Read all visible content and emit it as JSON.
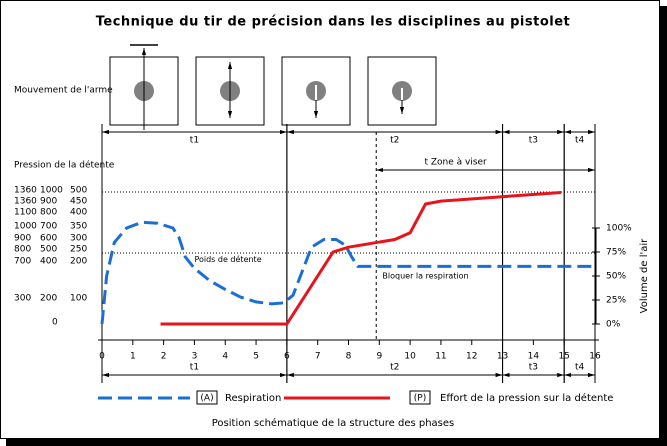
{
  "chart_data": {
    "type": "line",
    "title": "Technique du tir de précision dans les disciplines au pistolet",
    "weapon_label": "Mouvement de l'arme",
    "pressure_label": "Pression de la détente",
    "pressure_table": [
      [
        "1360",
        "1000",
        "500"
      ],
      [
        "1360",
        "900",
        "450"
      ],
      [
        "1100",
        "800",
        "400"
      ],
      [
        "1000",
        "700",
        "350"
      ],
      [
        "900",
        "600",
        "300"
      ],
      [
        "800",
        "500",
        "250"
      ],
      [
        "700",
        "400",
        "200"
      ],
      [
        "300",
        "200",
        "100"
      ],
      [
        "0"
      ]
    ],
    "x_label": "Position schématique de la structure des phases",
    "y2_label": "Volume de l'air",
    "xlim": [
      0,
      16
    ],
    "xticks": [
      0,
      1,
      2,
      3,
      4,
      5,
      6,
      7,
      8,
      9,
      10,
      11,
      12,
      13,
      14,
      15,
      16
    ],
    "ylim": [
      -20,
      200
    ],
    "yticks": [
      {
        "value": 0,
        "label": "0%"
      },
      {
        "value": 25,
        "label": "25%"
      },
      {
        "value": 50,
        "label": "50%"
      },
      {
        "value": 75,
        "label": "75%"
      },
      {
        "value": 100,
        "label": "100%"
      }
    ],
    "reference_lines": [
      137.5,
      74
    ],
    "phases": [
      {
        "label": "t1",
        "start": 0,
        "end": 6
      },
      {
        "label": "t2",
        "start": 6,
        "end": 13
      },
      {
        "label": "t3",
        "start": 13,
        "end": 15
      },
      {
        "label": "t4",
        "start": 15,
        "end": 16
      }
    ],
    "zone": {
      "label": "t Zone à viser",
      "start": 8.9,
      "end": 16
    },
    "annotations": [
      {
        "text": "Poids de détente",
        "x": 3.0,
        "y": 67
      },
      {
        "text": "Bloquer la respiration",
        "x": 9.1,
        "y": 50
      }
    ],
    "series": [
      {
        "name": "Respiration",
        "key": "(A)",
        "color": "#1a6fd4",
        "dash": true,
        "x": [
          0,
          0.15,
          0.4,
          0.8,
          1.3,
          1.8,
          2.3,
          2.5,
          2.7,
          3,
          3.5,
          4,
          4.5,
          5,
          5.5,
          5.9,
          6.2,
          6.5,
          6.8,
          7.2,
          7.6,
          7.9,
          8.1,
          8.3,
          8.6,
          16
        ],
        "values": [
          0,
          50,
          85,
          100,
          106,
          105,
          100,
          90,
          70,
          58,
          45,
          36,
          28,
          23,
          21,
          22,
          30,
          55,
          80,
          88,
          88,
          82,
          70,
          60,
          60,
          60
        ]
      },
      {
        "name": "Effort de la pression sur la détente",
        "key": "(P)",
        "color": "#e8141c",
        "dash": false,
        "x": [
          1.9,
          6,
          7.5,
          8,
          9.5,
          10,
          10.5,
          11,
          14.9
        ],
        "values": [
          0,
          0,
          75,
          80,
          88,
          95,
          125,
          128,
          137
        ]
      }
    ]
  }
}
